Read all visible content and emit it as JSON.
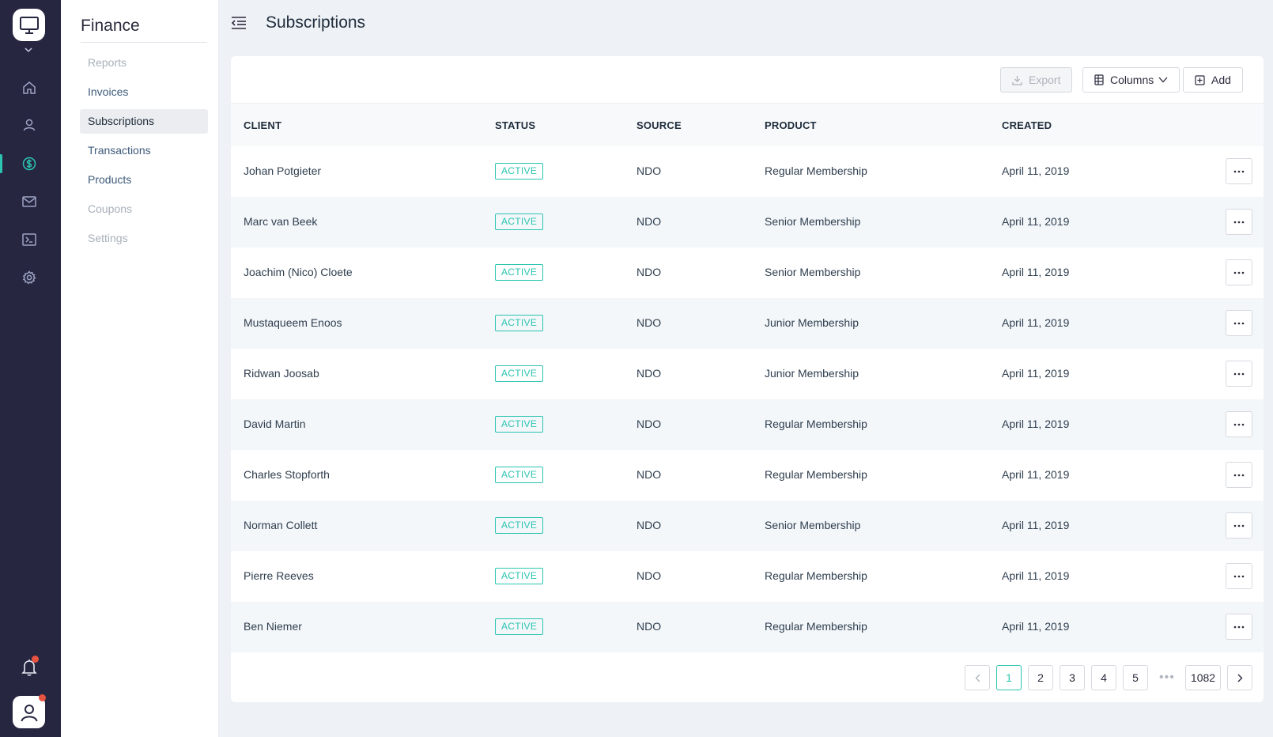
{
  "app": {
    "section_title": "Finance",
    "page_title": "Subscriptions"
  },
  "subnav": {
    "items": [
      {
        "label": "Reports",
        "state": "disabled"
      },
      {
        "label": "Invoices",
        "state": "normal"
      },
      {
        "label": "Subscriptions",
        "state": "active"
      },
      {
        "label": "Transactions",
        "state": "normal"
      },
      {
        "label": "Products",
        "state": "normal"
      },
      {
        "label": "Coupons",
        "state": "disabled"
      },
      {
        "label": "Settings",
        "state": "disabled"
      }
    ]
  },
  "rail": {
    "icons": [
      "desktop-icon",
      "home-icon",
      "user-icon",
      "dollar-icon",
      "mail-icon",
      "terminal-icon",
      "gear-icon"
    ],
    "active": "dollar-icon"
  },
  "toolbar": {
    "export_label": "Export",
    "columns_label": "Columns",
    "add_label": "Add"
  },
  "table": {
    "headers": {
      "client": "CLIENT",
      "status": "STATUS",
      "source": "SOURCE",
      "product": "PRODUCT",
      "created": "CREATED"
    },
    "rows": [
      {
        "client": "Johan Potgieter",
        "status": "ACTIVE",
        "source": "NDO",
        "product": "Regular Membership",
        "created": "April 11, 2019"
      },
      {
        "client": "Marc van Beek",
        "status": "ACTIVE",
        "source": "NDO",
        "product": "Senior Membership",
        "created": "April 11, 2019"
      },
      {
        "client": "Joachim (Nico) Cloete",
        "status": "ACTIVE",
        "source": "NDO",
        "product": "Senior Membership",
        "created": "April 11, 2019"
      },
      {
        "client": "Mustaqueem Enoos",
        "status": "ACTIVE",
        "source": "NDO",
        "product": "Junior Membership",
        "created": "April 11, 2019"
      },
      {
        "client": "Ridwan Joosab",
        "status": "ACTIVE",
        "source": "NDO",
        "product": "Junior Membership",
        "created": "April 11, 2019"
      },
      {
        "client": "David Martin",
        "status": "ACTIVE",
        "source": "NDO",
        "product": "Regular Membership",
        "created": "April 11, 2019"
      },
      {
        "client": "Charles Stopforth",
        "status": "ACTIVE",
        "source": "NDO",
        "product": "Regular Membership",
        "created": "April 11, 2019"
      },
      {
        "client": "Norman Collett",
        "status": "ACTIVE",
        "source": "NDO",
        "product": "Senior Membership",
        "created": "April 11, 2019"
      },
      {
        "client": "Pierre Reeves",
        "status": "ACTIVE",
        "source": "NDO",
        "product": "Regular Membership",
        "created": "April 11, 2019"
      },
      {
        "client": "Ben Niemer",
        "status": "ACTIVE",
        "source": "NDO",
        "product": "Regular Membership",
        "created": "April 11, 2019"
      }
    ]
  },
  "pagination": {
    "pages": [
      "1",
      "2",
      "3",
      "4",
      "5"
    ],
    "ellipsis": "•••",
    "last": "1082",
    "current": "1"
  },
  "colors": {
    "accent": "#2bc4b0",
    "rail_bg": "#262641",
    "notification": "#e8533f"
  }
}
